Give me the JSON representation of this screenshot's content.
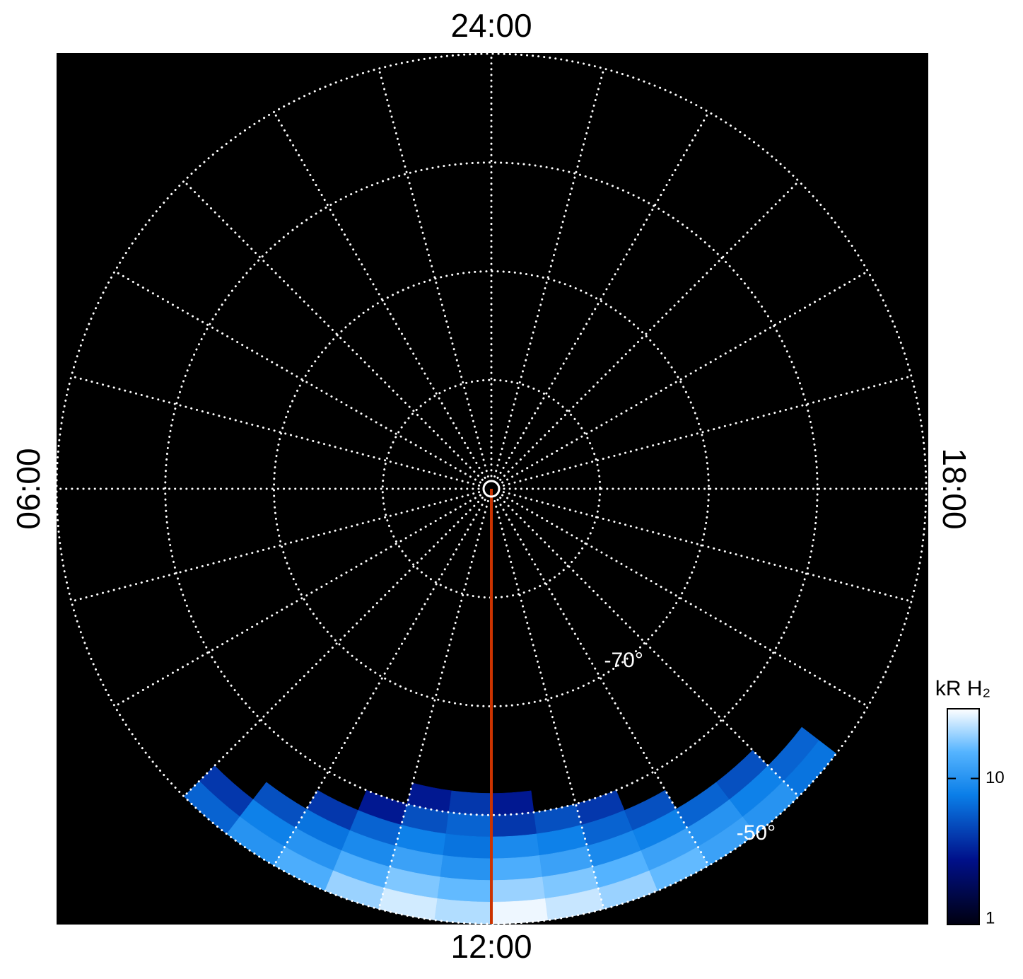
{
  "chart_data": {
    "type": "polar-map",
    "latlim": [
      -90,
      -50
    ],
    "lat_grid": [
      -80,
      -70,
      -60,
      -50
    ],
    "lt_grid_step": 1,
    "local_time_labels": [
      {
        "value": 0,
        "label": "24:00"
      },
      {
        "value": 6,
        "label": "06:00"
      },
      {
        "value": 12,
        "label": "12:00"
      },
      {
        "value": 18,
        "label": "18:00"
      }
    ],
    "lat_labels": [
      {
        "value": -70,
        "label": "-70°"
      },
      {
        "value": -50,
        "label": "-50°"
      }
    ],
    "noon_line": {
      "local_time": 12,
      "color": "#cc3300"
    },
    "emission": {
      "lt_edges": [
        9,
        9.5,
        10,
        10.5,
        11,
        11.5,
        12,
        12.5,
        13,
        13.5,
        14,
        14.5,
        15,
        15.5
      ],
      "lat_edges": [
        -62,
        -60,
        -58,
        -56,
        -54,
        -52,
        -50
      ],
      "values": [
        [
          null,
          null,
          null,
          null,
          3,
          4,
          3,
          null,
          null,
          null,
          null,
          null,
          null
        ],
        [
          null,
          null,
          null,
          3,
          5,
          6,
          4,
          5,
          4,
          null,
          null,
          null,
          null
        ],
        [
          null,
          null,
          4,
          6,
          8,
          7,
          9,
          8,
          6,
          5,
          null,
          null,
          null
        ],
        [
          null,
          5,
          7,
          9,
          12,
          10,
          14,
          12,
          9,
          8,
          6,
          5,
          null
        ],
        [
          4,
          8,
          10,
          14,
          18,
          16,
          20,
          18,
          15,
          12,
          10,
          8,
          6
        ],
        [
          6,
          10,
          14,
          20,
          25,
          22,
          28,
          24,
          20,
          16,
          12,
          10,
          7
        ]
      ]
    },
    "colorbar": {
      "label": "kR H₂",
      "lim": [
        1,
        30
      ],
      "ticks": [
        1,
        10
      ],
      "log": true
    }
  }
}
